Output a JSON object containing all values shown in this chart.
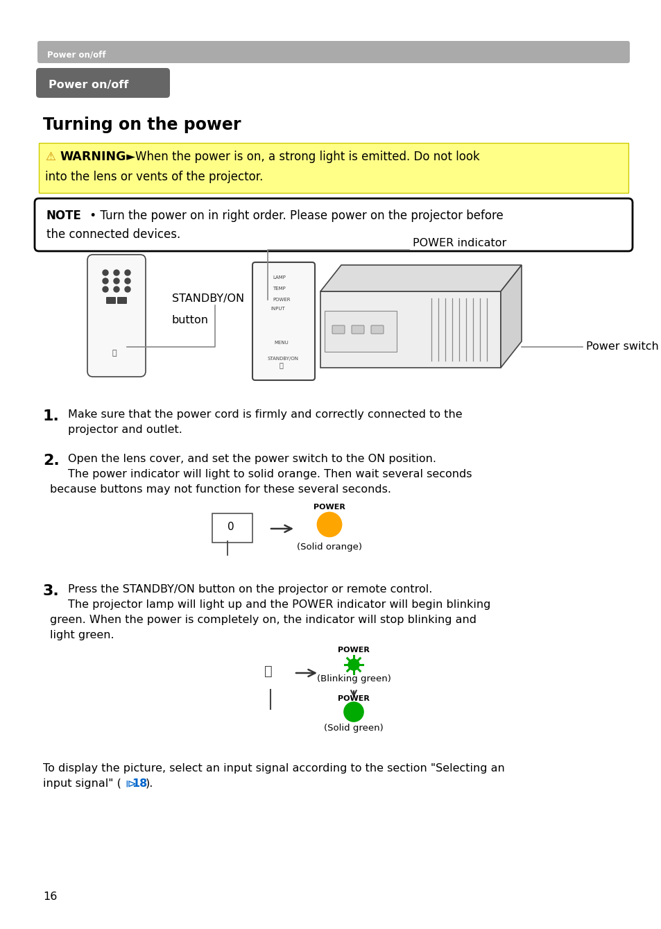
{
  "page_bg": "#ffffff",
  "header_bar_color": "#aaaaaa",
  "header_text": "Power on/off",
  "badge_color": "#666666",
  "badge_text": "Power on/off",
  "title_text": "Turning on the power",
  "warning_bg": "#ffff88",
  "warning_line1_bold": "⚠WARNING",
  "warning_line1_arrow": " ►",
  "warning_line1_rest": "When the power is on, a strong light is emitted. Do not look",
  "warning_line2": "into the lens or vents of the projector.",
  "note_bold": "NOTE",
  "note_rest": " • Turn the power on in right order. Please power on the projector before",
  "note_line2": "the connected devices.",
  "label_standby": "STANDBY/ON",
  "label_standby2": "button",
  "label_power_ind": "POWER indicator",
  "label_power_sw": "Power switch",
  "step1_n": "1.",
  "step1_l1": "Make sure that the power cord is firmly and correctly connected to the",
  "step1_l2": "projector and outlet.",
  "step2_n": "2.",
  "step2_l1": "Open the lens cover, and set the power switch to the ON position.",
  "step2_l2": "The power indicator will light to solid orange. Then wait several seconds",
  "step2_l3": "because buttons may not function for these several seconds.",
  "step2_pwr_lbl": "POWER",
  "step2_orange": "#FFA500",
  "step2_caption": "(Solid orange)",
  "step3_n": "3.",
  "step3_l1": "Press the STANDBY/ON button on the projector or remote control.",
  "step3_l2": "The projector lamp will light up and the POWER indicator will begin blinking",
  "step3_l3": "green. When the power is completely on, the indicator will stop blinking and",
  "step3_l4": "light green.",
  "step3_pwr1": "POWER",
  "step3_cap1": "(Blinking green)",
  "step3_green": "#00aa00",
  "step3_pwr2": "POWER",
  "step3_cap2": "(Solid green)",
  "footer_l1": "To display the picture, select an input signal according to the section \"Selecting an",
  "footer_l2": "input signal\" (",
  "footer_icon": "⧐18",
  "footer_l2end": ").",
  "page_num": "16",
  "tc": "#000000",
  "fs": 11.5,
  "ml": 0.62,
  "mr": 9.0
}
